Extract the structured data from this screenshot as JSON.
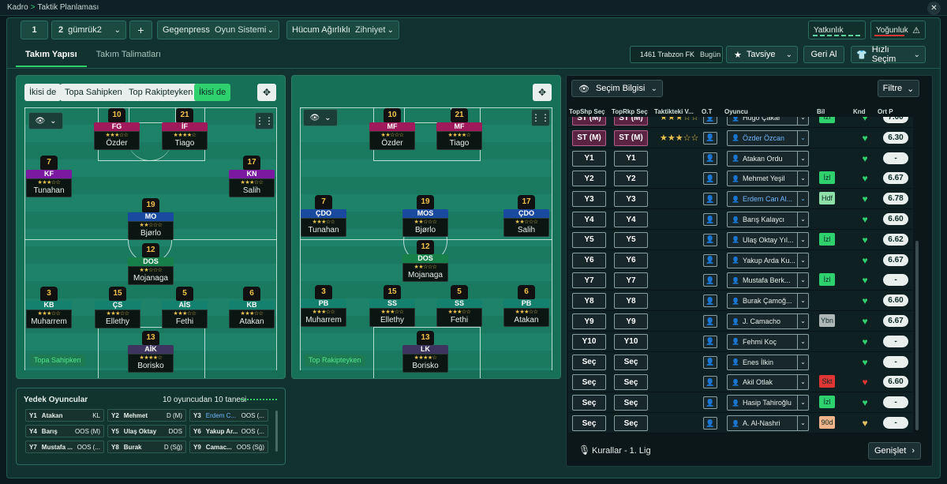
{
  "breadcrumb": {
    "root": "Kadro",
    "page": "Taktik Planlaması"
  },
  "toolbar": {
    "slot1": "1",
    "slot2": "2",
    "tactic_name": "gümrük2",
    "add": "+",
    "gegenpress_label": "Gegenpress",
    "gegenpress_sub": "Oyun Sistemi",
    "hucum_label": "Hücum Ağırlıklı",
    "hucum_sub": "Zihniyet",
    "yatkinlik": "Yatkınlık",
    "yogunluk": "Yoğunluk"
  },
  "tabs": [
    "Takım Yapısı",
    "Takım Talimatları"
  ],
  "header_right": {
    "match": "1461 Trabzon FK",
    "when": "Bugün",
    "tavsiye": "Tavsiye",
    "geri_al": "Geri Al",
    "hizli_secim": "Hızlı Seçim"
  },
  "pitch_left": {
    "controls": [
      "İkisi de",
      "Topa Sahipken",
      "Top Rakipteyken",
      "İkisi de"
    ],
    "label": "Topa Sahipken",
    "players": [
      {
        "num": "10",
        "pos": "FG",
        "name": "Özder",
        "color": "#a0195a",
        "stars": "★★★☆☆"
      },
      {
        "num": "21",
        "pos": "İF",
        "name": "Tiago",
        "color": "#a0195a",
        "stars": "★★★★☆"
      },
      {
        "num": "7",
        "pos": "KF",
        "name": "Tunahan",
        "color": "#7b1aa0",
        "stars": "★★★☆☆"
      },
      {
        "num": "17",
        "pos": "KN",
        "name": "Salih",
        "color": "#7b1aa0",
        "stars": "★★★☆☆"
      },
      {
        "num": "19",
        "pos": "MO",
        "name": "Bjørlo",
        "color": "#1a4aa0",
        "stars": "★★☆☆☆"
      },
      {
        "num": "12",
        "pos": "DOS",
        "name": "Mojanaga",
        "color": "#17804a",
        "stars": "★★☆☆☆"
      },
      {
        "num": "3",
        "pos": "KB",
        "name": "Muharrem",
        "color": "#14806e",
        "stars": "★★★☆☆"
      },
      {
        "num": "15",
        "pos": "ÇS",
        "name": "Ellethy",
        "color": "#14806e",
        "stars": "★★★☆☆"
      },
      {
        "num": "5",
        "pos": "AİS",
        "name": "Fethi",
        "color": "#14806e",
        "stars": "★★★☆☆"
      },
      {
        "num": "6",
        "pos": "KB",
        "name": "Atakan",
        "color": "#14806e",
        "stars": "★★★☆☆"
      },
      {
        "num": "13",
        "pos": "AİK",
        "name": "Borisko",
        "color": "#3d3560",
        "stars": "★★★★☆"
      }
    ]
  },
  "pitch_right": {
    "label": "Top Rakipteyken",
    "players": [
      {
        "num": "10",
        "pos": "MF",
        "name": "Özder",
        "color": "#a0195a",
        "stars": "★★☆☆☆"
      },
      {
        "num": "21",
        "pos": "MF",
        "name": "Tiago",
        "color": "#a0195a",
        "stars": "★★★★☆"
      },
      {
        "num": "7",
        "pos": "ÇDO",
        "name": "Tunahan",
        "color": "#1a4aa0",
        "stars": "★★★☆☆"
      },
      {
        "num": "19",
        "pos": "MOS",
        "name": "Bjørlo",
        "color": "#1a4aa0",
        "stars": "★★☆☆☆"
      },
      {
        "num": "17",
        "pos": "ÇDO",
        "name": "Salih",
        "color": "#1a4aa0",
        "stars": "★★☆☆☆"
      },
      {
        "num": "12",
        "pos": "DOS",
        "name": "Mojanaga",
        "color": "#17804a",
        "stars": "★★☆☆☆"
      },
      {
        "num": "3",
        "pos": "PB",
        "name": "Muharrem",
        "color": "#14806e",
        "stars": "★★★☆☆"
      },
      {
        "num": "15",
        "pos": "SS",
        "name": "Ellethy",
        "color": "#14806e",
        "stars": "★★★☆☆"
      },
      {
        "num": "5",
        "pos": "SS",
        "name": "Fethi",
        "color": "#14806e",
        "stars": "★★★☆☆"
      },
      {
        "num": "6",
        "pos": "PB",
        "name": "Atakan",
        "color": "#14806e",
        "stars": "★★★☆☆"
      },
      {
        "num": "13",
        "pos": "LK",
        "name": "Borisko",
        "color": "#3d3560",
        "stars": "★★★★☆"
      }
    ]
  },
  "selection": {
    "title": "Seçim Bilgisi",
    "filter": "Filtre",
    "footer": "Kurallar - 1. Lig",
    "expand": "Genişlet",
    "columns": [
      "TopShp Seç",
      "TopRkp Seç",
      "Taktikteki V...",
      "O.T",
      "Oyuncu",
      "Bil",
      "Knd",
      "Ort P"
    ],
    "rows": [
      {
        "a": "ST (M)",
        "b": "ST (M)",
        "stars": "★★★☆☆",
        "name": "Hugo Çakar",
        "bil": "İzl",
        "bilc": "#2fd06e",
        "heart": "#2fd06e",
        "rating": "7.00",
        "st": true
      },
      {
        "a": "ST (M)",
        "b": "ST (M)",
        "stars": "★★★☆☆",
        "name": "Özder Özcan",
        "bil": "",
        "bilc": "",
        "heart": "#2fd06e",
        "rating": "6.30",
        "st": true,
        "blue": true
      },
      {
        "a": "Y1",
        "b": "Y1",
        "stars": "",
        "name": "Atakan Ordu",
        "bil": "",
        "bilc": "",
        "heart": "#2fd06e",
        "rating": "-"
      },
      {
        "a": "Y2",
        "b": "Y2",
        "stars": "",
        "name": "Mehmet Yeşil",
        "bil": "İzl",
        "bilc": "#2fd06e",
        "heart": "#2fd06e",
        "rating": "6.67"
      },
      {
        "a": "Y3",
        "b": "Y3",
        "stars": "",
        "name": "Erdem Can Al...",
        "bil": "Hdf",
        "bilc": "#8ee0a8",
        "heart": "#2fd06e",
        "rating": "6.78",
        "blue": true
      },
      {
        "a": "Y4",
        "b": "Y4",
        "stars": "",
        "name": "Barış Kalaycı",
        "bil": "",
        "bilc": "",
        "heart": "#2fd06e",
        "rating": "6.60"
      },
      {
        "a": "Y5",
        "b": "Y5",
        "stars": "",
        "name": "Ulaş Oktay Yıl...",
        "bil": "İzl",
        "bilc": "#2fd06e",
        "heart": "#2fd06e",
        "rating": "6.62"
      },
      {
        "a": "Y6",
        "b": "Y6",
        "stars": "",
        "name": "Yakup Arda Ku...",
        "bil": "",
        "bilc": "",
        "heart": "#2fd06e",
        "rating": "6.67"
      },
      {
        "a": "Y7",
        "b": "Y7",
        "stars": "",
        "name": "Mustafa Berk...",
        "bil": "İzl",
        "bilc": "#2fd06e",
        "heart": "#2fd06e",
        "rating": "-"
      },
      {
        "a": "Y8",
        "b": "Y8",
        "stars": "",
        "name": "Burak Çamoğ...",
        "bil": "",
        "bilc": "",
        "heart": "#2fd06e",
        "rating": "6.60"
      },
      {
        "a": "Y9",
        "b": "Y9",
        "stars": "",
        "name": "J. Camacho",
        "bil": "Ybn",
        "bilc": "#b0b8b8",
        "heart": "#2fd06e",
        "rating": "6.67"
      },
      {
        "a": "Y10",
        "b": "Y10",
        "stars": "",
        "name": "Fehmi Koç",
        "bil": "",
        "bilc": "",
        "heart": "#2fd06e",
        "rating": "-"
      },
      {
        "a": "Seç",
        "b": "Seç",
        "stars": "",
        "name": "Enes İlkin",
        "bil": "",
        "bilc": "",
        "heart": "#2fd06e",
        "rating": "-"
      },
      {
        "a": "Seç",
        "b": "Seç",
        "stars": "",
        "name": "Akil Otlak",
        "bil": "Skt",
        "bilc": "#e03535",
        "heart": "#e03535",
        "rating": "6.60"
      },
      {
        "a": "Seç",
        "b": "Seç",
        "stars": "",
        "name": "Hasip Tahiroğlu",
        "bil": "İzl",
        "bilc": "#2fd06e",
        "heart": "#2fd06e",
        "rating": "-"
      },
      {
        "a": "Seç",
        "b": "Seç",
        "stars": "",
        "name": "A. Al-Nashri",
        "bil": "90d",
        "bilc": "#f0b48a",
        "heart": "#e0c060",
        "rating": "-"
      }
    ]
  },
  "bench": {
    "title": "Yedek Oyuncular",
    "count": "10 oyuncudan 10 tanesi",
    "items": [
      {
        "n": "Y1",
        "nm": "Atakan",
        "p": "KL"
      },
      {
        "n": "Y2",
        "nm": "Mehmet",
        "p": "D (M)"
      },
      {
        "n": "Y3",
        "nm": "Erdem C...",
        "p": "OOS (...",
        "blue": true
      },
      {
        "n": "Y4",
        "nm": "Barış",
        "p": "OOS (M)"
      },
      {
        "n": "Y5",
        "nm": "Ulaş Oktay",
        "p": "DOS"
      },
      {
        "n": "Y6",
        "nm": "Yakup Ar...",
        "p": "OOS (..."
      },
      {
        "n": "Y7",
        "nm": "Mustafa ...",
        "p": "OOS (..."
      },
      {
        "n": "Y8",
        "nm": "Burak",
        "p": "D (Sğ)"
      },
      {
        "n": "Y9",
        "nm": "Camac...",
        "p": "OOS (Sğ)"
      }
    ]
  }
}
